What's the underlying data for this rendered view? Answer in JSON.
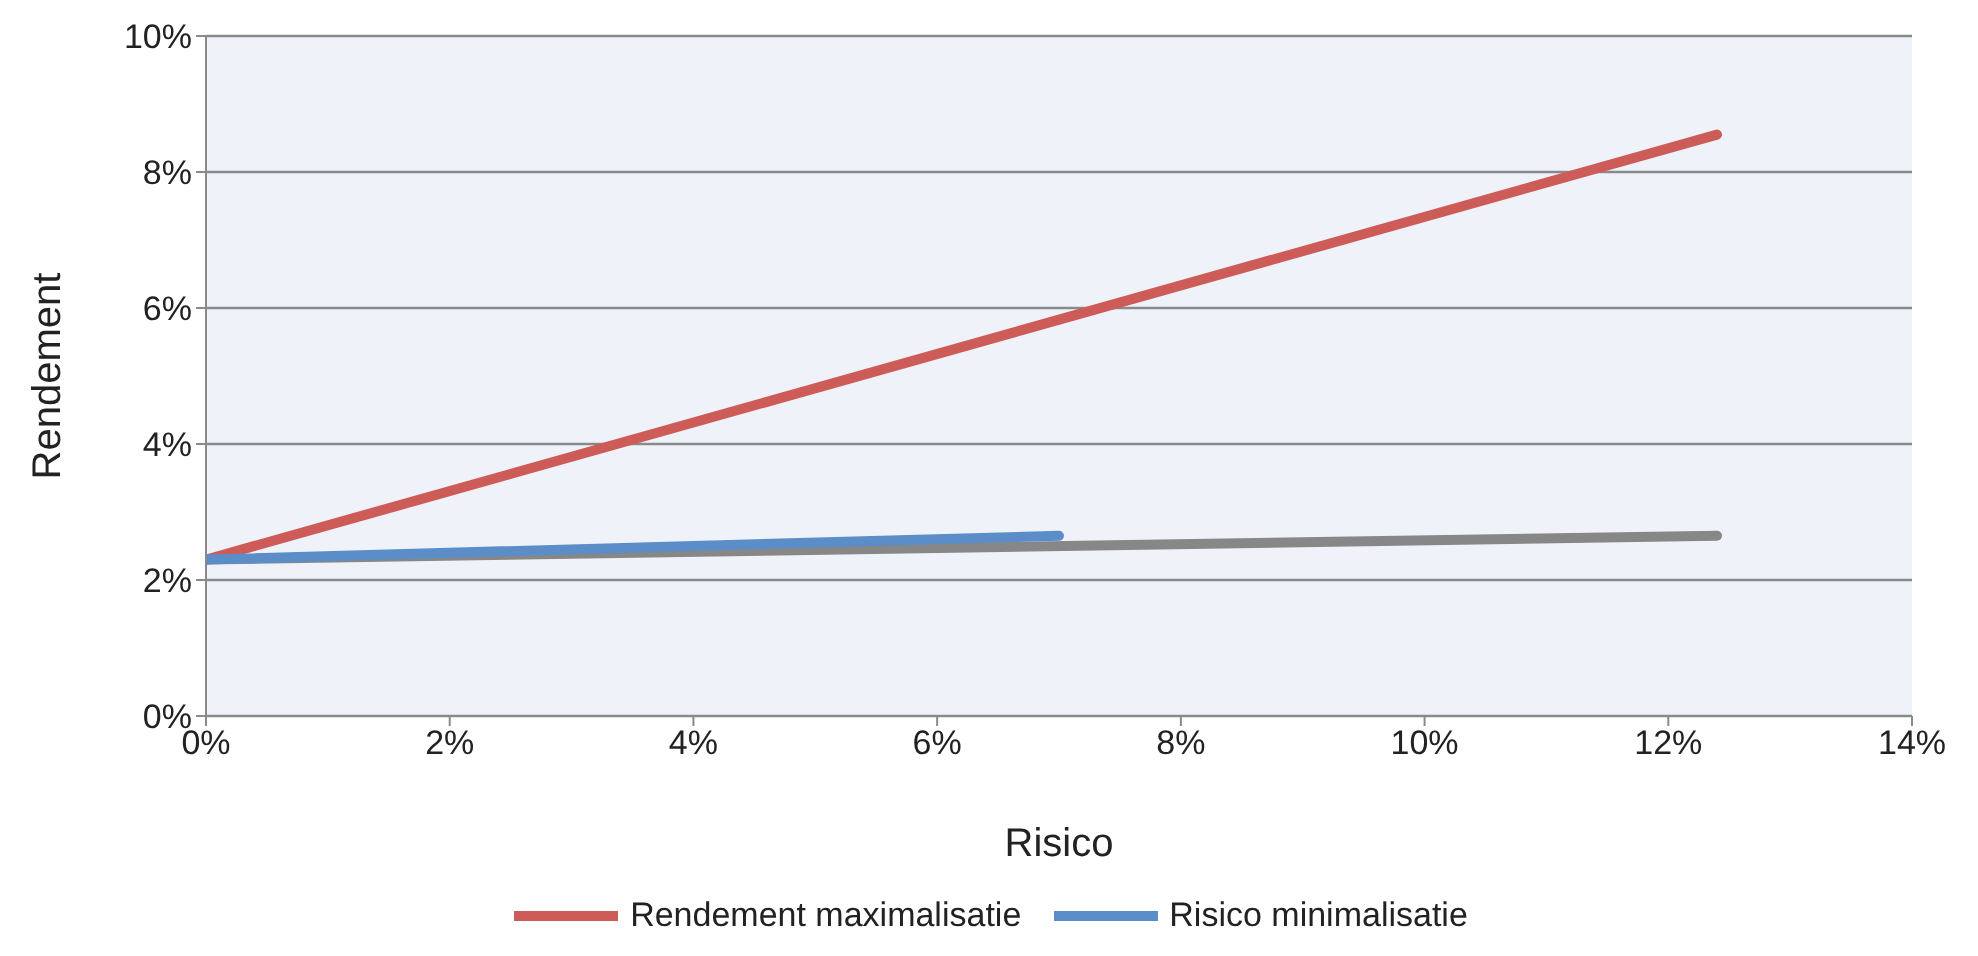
{
  "chart_data": {
    "type": "line",
    "xlabel": "Risico",
    "ylabel": "Rendement",
    "xlim": [
      0,
      14
    ],
    "xticks": [
      {
        "value": 0,
        "label": "0%"
      },
      {
        "value": 2,
        "label": "2%"
      },
      {
        "value": 4,
        "label": "4%"
      },
      {
        "value": 6,
        "label": "6%"
      },
      {
        "value": 8,
        "label": "8%"
      },
      {
        "value": 10,
        "label": "10%"
      },
      {
        "value": 12,
        "label": "12%"
      },
      {
        "value": 14,
        "label": "14%"
      }
    ],
    "ylim": [
      0,
      10
    ],
    "yticks": [
      {
        "value": 0,
        "label": "0%"
      },
      {
        "value": 2,
        "label": "2%"
      },
      {
        "value": 4,
        "label": "4%"
      },
      {
        "value": 6,
        "label": "6%"
      },
      {
        "value": 8,
        "label": "8%"
      },
      {
        "value": 10,
        "label": "10%"
      }
    ],
    "grid": "y",
    "legend": "bottom",
    "marker": "none",
    "line_style": "solid",
    "series": [
      {
        "color": "#878787",
        "x": [
          0,
          12.4
        ],
        "values": [
          2.3,
          2.65
        ]
      },
      {
        "name": "Rendement maximalisatie",
        "color": "#cd5c58",
        "x": [
          0,
          12.4
        ],
        "values": [
          2.3,
          8.55
        ]
      },
      {
        "name": "Risico minimalisatie",
        "color": "#5b8ec8",
        "x": [
          0,
          7
        ],
        "values": [
          2.3,
          2.65
        ]
      }
    ]
  }
}
